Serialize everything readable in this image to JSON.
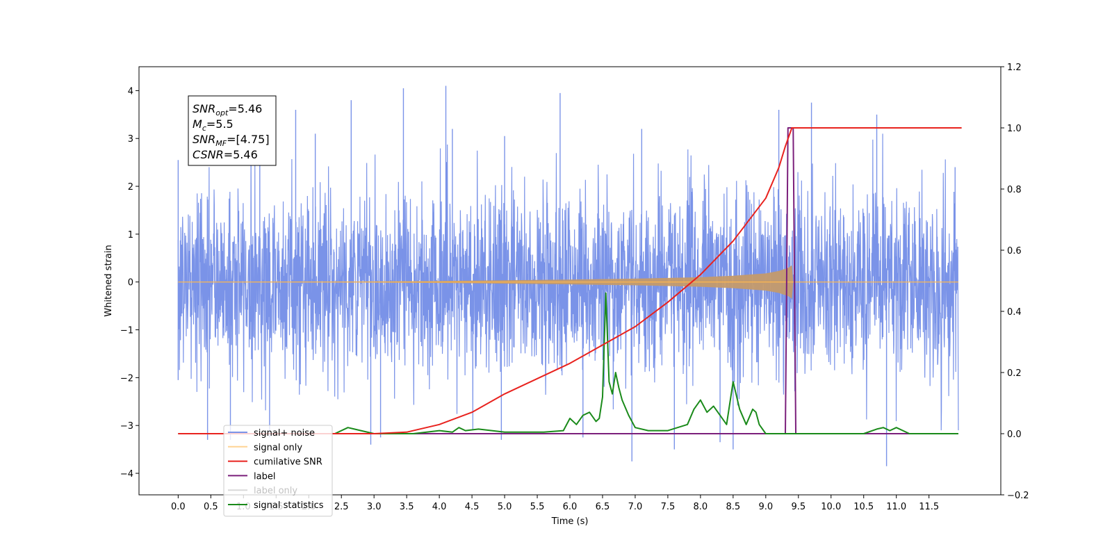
{
  "chart_data": {
    "type": "line",
    "title": "",
    "xlabel": "Time (s)",
    "ylabel": "Whitened strain",
    "xlim": [
      -0.6,
      12.6
    ],
    "ylim": [
      -4.45,
      4.5
    ],
    "y2lim": [
      -0.2,
      1.2
    ],
    "x_ticks": [
      "0.0",
      "0.5",
      "1.0",
      "1.5",
      "2.0",
      "2.5",
      "3.0",
      "3.5",
      "4.0",
      "4.5",
      "5.0",
      "5.5",
      "6.0",
      "6.5",
      "7.0",
      "7.5",
      "8.0",
      "8.5",
      "9.0",
      "9.5",
      "10.0",
      "10.5",
      "11.0",
      "11.5"
    ],
    "y_ticks": [
      "−4",
      "−3",
      "−2",
      "−1",
      "0",
      "1",
      "2",
      "3",
      "4"
    ],
    "y2_ticks": [
      "−0.2",
      "0.0",
      "0.2",
      "0.4",
      "0.6",
      "0.8",
      "1.0",
      "1.2"
    ],
    "grid": false,
    "legend_position": "lower-left",
    "annotation": {
      "lines": [
        {
          "sym": "SNR",
          "sub": "opt",
          "rest": "=5.46"
        },
        {
          "sym": "M",
          "sub": "c",
          "rest": "=5.5"
        },
        {
          "sym": "SNR",
          "sub": "MF",
          "rest": "=[4.75]"
        },
        {
          "sym": "CSNR",
          "sub": "",
          "rest": "=5.46"
        }
      ]
    },
    "series": [
      {
        "name": "signal+ noise",
        "color": "#7a93e8",
        "axis": "left",
        "noise_std": 1.0,
        "spikes": [
          {
            "x": 0.0,
            "y": 2.55
          },
          {
            "x": 0.0,
            "y": -2.05
          },
          {
            "x": 0.45,
            "y": -3.3
          },
          {
            "x": 0.8,
            "y": -3.3
          },
          {
            "x": 1.25,
            "y": 3.3
          },
          {
            "x": 1.4,
            "y": -3.25
          },
          {
            "x": 1.8,
            "y": 3.6
          },
          {
            "x": 2.1,
            "y": 3.1
          },
          {
            "x": 2.65,
            "y": 3.8
          },
          {
            "x": 2.95,
            "y": -3.4
          },
          {
            "x": 3.1,
            "y": -3.25
          },
          {
            "x": 3.45,
            "y": 4.05
          },
          {
            "x": 4.1,
            "y": 4.1
          },
          {
            "x": 4.2,
            "y": 3.2
          },
          {
            "x": 4.95,
            "y": -3.3
          },
          {
            "x": 5.0,
            "y": 3.05
          },
          {
            "x": 5.85,
            "y": 3.95
          },
          {
            "x": 6.2,
            "y": -3.25
          },
          {
            "x": 6.95,
            "y": -3.75
          },
          {
            "x": 7.1,
            "y": 3.2
          },
          {
            "x": 7.6,
            "y": -3.5
          },
          {
            "x": 8.3,
            "y": -3.35
          },
          {
            "x": 8.5,
            "y": -3.5
          },
          {
            "x": 9.2,
            "y": 3.6
          },
          {
            "x": 9.7,
            "y": 3.75
          },
          {
            "x": 10.7,
            "y": 3.5
          },
          {
            "x": 10.85,
            "y": -3.85
          },
          {
            "x": 11.9,
            "y": 2.4
          }
        ]
      },
      {
        "name": "signal only",
        "color": "#ffb84d",
        "axis": "left",
        "envelope": [
          [
            0.0,
            0.0
          ],
          [
            2.0,
            0.005
          ],
          [
            4.0,
            0.02
          ],
          [
            5.0,
            0.035
          ],
          [
            6.0,
            0.05
          ],
          [
            7.0,
            0.07
          ],
          [
            8.0,
            0.1
          ],
          [
            8.5,
            0.13
          ],
          [
            9.0,
            0.18
          ],
          [
            9.2,
            0.23
          ],
          [
            9.35,
            0.3
          ],
          [
            9.4,
            0.35
          ],
          [
            9.42,
            0.0
          ],
          [
            12.0,
            0.0
          ]
        ]
      },
      {
        "name": "cumilative SNR",
        "color": "#e8221e",
        "axis": "right",
        "x": [
          0.0,
          2.5,
          3.0,
          3.5,
          4.0,
          4.5,
          5.0,
          5.5,
          6.0,
          6.5,
          7.0,
          7.5,
          8.0,
          8.5,
          9.0,
          9.2,
          9.3,
          9.4,
          12.0
        ],
        "y": [
          0.0,
          0.0,
          0.0,
          0.005,
          0.03,
          0.07,
          0.13,
          0.18,
          0.23,
          0.29,
          0.35,
          0.43,
          0.52,
          0.63,
          0.77,
          0.87,
          0.94,
          1.0,
          1.0
        ]
      },
      {
        "name": "label",
        "color": "#7b1f7b",
        "axis": "right",
        "x": [
          0.0,
          9.3,
          9.34,
          9.42,
          9.46,
          11.95
        ],
        "y": [
          0.0,
          0.0,
          1.0,
          1.0,
          0.0,
          0.0
        ]
      },
      {
        "name": "signal statistics",
        "color": "#1a8a1a",
        "axis": "right",
        "x": [
          0.0,
          2.4,
          2.6,
          2.8,
          3.0,
          3.6,
          4.0,
          4.2,
          4.3,
          4.4,
          4.6,
          5.0,
          5.6,
          5.9,
          6.0,
          6.1,
          6.2,
          6.3,
          6.4,
          6.45,
          6.5,
          6.55,
          6.6,
          6.65,
          6.7,
          6.75,
          6.8,
          6.9,
          7.0,
          7.2,
          7.5,
          7.8,
          7.9,
          8.0,
          8.1,
          8.2,
          8.3,
          8.4,
          8.5,
          8.6,
          8.7,
          8.8,
          8.85,
          8.9,
          9.0,
          9.5,
          10.5,
          10.7,
          10.8,
          10.9,
          11.0,
          11.2,
          11.95
        ],
        "y": [
          0.0,
          0.0,
          0.02,
          0.01,
          0.0,
          0.0,
          0.01,
          0.005,
          0.02,
          0.01,
          0.015,
          0.005,
          0.005,
          0.01,
          0.05,
          0.03,
          0.06,
          0.07,
          0.04,
          0.05,
          0.12,
          0.46,
          0.17,
          0.13,
          0.2,
          0.15,
          0.11,
          0.06,
          0.02,
          0.01,
          0.01,
          0.03,
          0.08,
          0.11,
          0.07,
          0.09,
          0.06,
          0.03,
          0.17,
          0.08,
          0.03,
          0.08,
          0.07,
          0.03,
          0.0,
          0.0,
          0.0,
          0.015,
          0.02,
          0.01,
          0.02,
          0.0,
          0.0
        ]
      }
    ],
    "legend_entries": [
      {
        "label": "signal+ noise",
        "color": "#7a93e8",
        "alpha": 1.0
      },
      {
        "label": "signal only",
        "color": "#ffb84d",
        "alpha": 0.6
      },
      {
        "label": "cumilative SNR",
        "color": "#e8221e",
        "alpha": 1.0
      },
      {
        "label": "label",
        "color": "#7b1f7b",
        "alpha": 1.0
      },
      {
        "label": "label only",
        "color": "#000000",
        "alpha": 0.15
      },
      {
        "label": "signal statistics",
        "color": "#1a8a1a",
        "alpha": 1.0
      }
    ]
  }
}
